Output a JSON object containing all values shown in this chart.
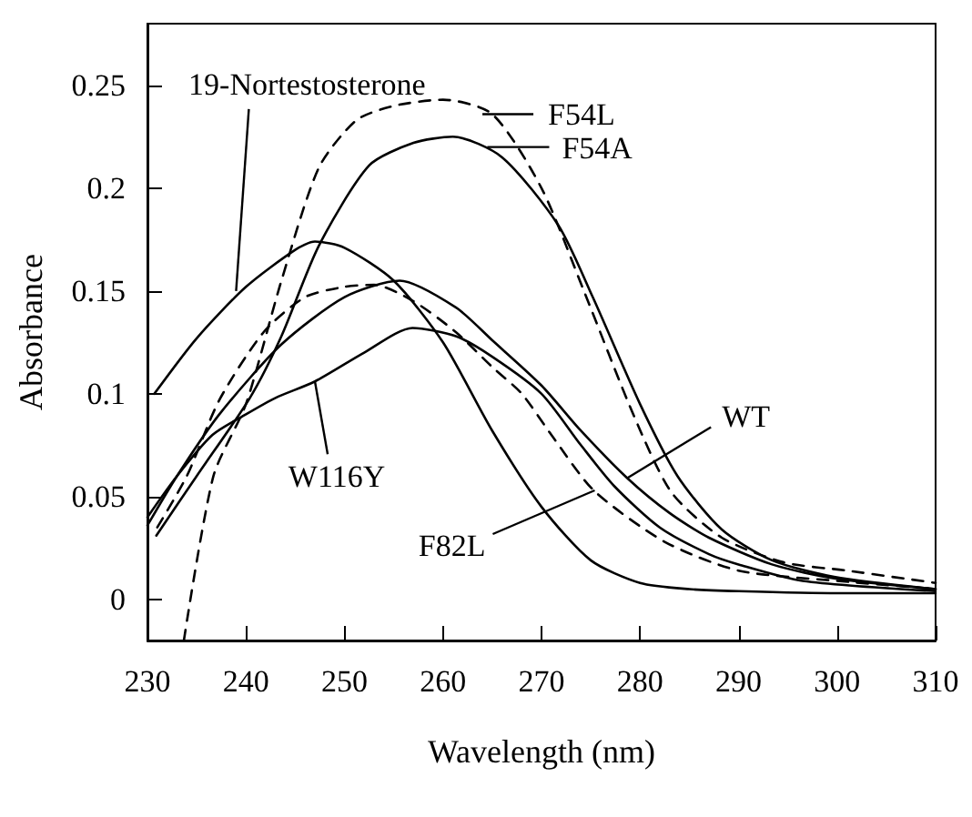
{
  "chart_data": {
    "type": "line",
    "xlabel": "Wavelength (nm)",
    "ylabel": "Absorbance",
    "xlim": [
      230,
      310
    ],
    "ylim": [
      -0.02,
      0.28
    ],
    "xticks": [
      230,
      240,
      250,
      260,
      270,
      280,
      290,
      300,
      310
    ],
    "yticks": [
      0,
      0.05,
      0.1,
      0.15,
      0.2,
      0.25
    ],
    "grid": false,
    "marker": "none",
    "annotations": [
      {
        "text": "19-Nortestosterone",
        "x": 239,
        "y": 0.15
      },
      {
        "text": "F54L",
        "x": 264,
        "y": 0.236
      },
      {
        "text": "F54A",
        "x": 264.5,
        "y": 0.22
      },
      {
        "text": "WT",
        "x": 278.7,
        "y": 0.059
      },
      {
        "text": "F82L",
        "x": 275.4,
        "y": 0.053
      },
      {
        "text": "W116Y",
        "x": 247,
        "y": 0.106
      }
    ],
    "series": [
      {
        "color": "#000000",
        "line_style": "solid",
        "x": [
          230.7,
          235,
          240,
          245,
          247,
          250,
          255,
          260,
          265,
          270,
          275,
          280,
          285,
          290,
          300,
          310
        ],
        "values": [
          0.1,
          0.127,
          0.152,
          0.17,
          0.174,
          0.171,
          0.155,
          0.125,
          0.082,
          0.045,
          0.019,
          0.008,
          0.005,
          0.004,
          0.003,
          0.003
        ]
      },
      {
        "color": "#000000",
        "line_style": "dashed",
        "x": [
          233.7,
          236.7,
          240,
          243.6,
          247.4,
          251.2,
          255,
          260,
          265,
          270,
          274.3,
          279.4,
          283.2,
          288.3,
          294.6,
          301,
          310
        ],
        "values": [
          -0.02,
          0.06,
          0.095,
          0.155,
          0.21,
          0.233,
          0.24,
          0.243,
          0.236,
          0.2,
          0.15,
          0.089,
          0.052,
          0.03,
          0.018,
          0.014,
          0.008
        ]
      },
      {
        "color": "#000000",
        "line_style": "solid",
        "x": [
          230.9,
          235,
          240.4,
          243.6,
          247.4,
          252.5,
          257,
          261,
          266,
          271.7,
          275.2,
          280,
          283.8,
          288.3,
          293.4,
          299.7,
          310
        ],
        "values": [
          0.031,
          0.06,
          0.098,
          0.128,
          0.172,
          0.211,
          0.222,
          0.225,
          0.215,
          0.182,
          0.147,
          0.095,
          0.06,
          0.034,
          0.019,
          0.011,
          0.005
        ]
      },
      {
        "color": "#000000",
        "line_style": "solid",
        "x": [
          230,
          233,
          237.3,
          243.6,
          250,
          255.6,
          261.3,
          265,
          270,
          274,
          278.7,
          283,
          287,
          293.4,
          300,
          310
        ],
        "values": [
          0.036,
          0.06,
          0.09,
          0.124,
          0.147,
          0.155,
          0.142,
          0.126,
          0.104,
          0.082,
          0.059,
          0.042,
          0.03,
          0.017,
          0.01,
          0.005
        ]
      },
      {
        "color": "#000000",
        "line_style": "dashed",
        "x": [
          231,
          234,
          237.3,
          241.8,
          246,
          250,
          253,
          257,
          261.3,
          265,
          268,
          271,
          275.3,
          282.5,
          290,
          300,
          310
        ],
        "values": [
          0.035,
          0.06,
          0.097,
          0.13,
          0.147,
          0.152,
          0.153,
          0.145,
          0.13,
          0.113,
          0.1,
          0.08,
          0.053,
          0.028,
          0.014,
          0.009,
          0.005
        ]
      },
      {
        "color": "#000000",
        "line_style": "solid",
        "x": [
          230,
          233,
          236.6,
          240,
          243,
          247,
          252,
          256.9,
          261.3,
          265,
          270,
          274,
          277.4,
          282,
          287,
          290,
          296.5,
          310
        ],
        "values": [
          0.04,
          0.06,
          0.08,
          0.09,
          0.098,
          0.106,
          0.12,
          0.132,
          0.128,
          0.118,
          0.1,
          0.075,
          0.055,
          0.035,
          0.022,
          0.017,
          0.009,
          0.004
        ]
      }
    ]
  }
}
